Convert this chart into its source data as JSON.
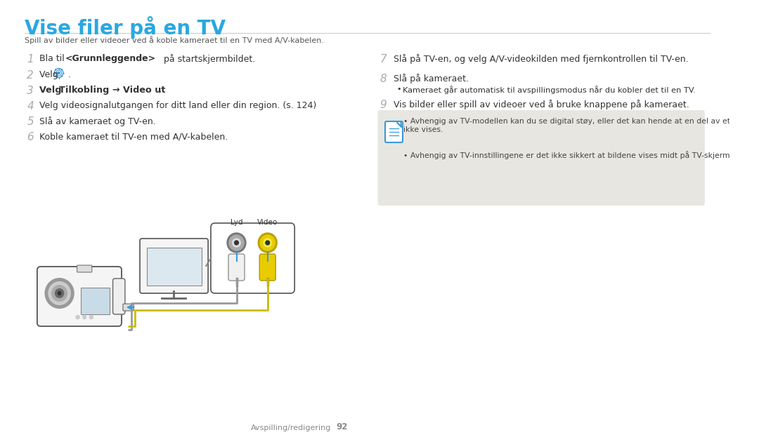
{
  "title": "Vise filer på en TV",
  "title_color": "#29a8e0",
  "subtitle": "Spill av bilder eller videoer ved å koble kameraet til en TV med A/V-kabelen.",
  "subtitle_color": "#555555",
  "bg_color": "#ffffff",
  "num_color": "#aaaaaa",
  "step_color": "#333333",
  "divider_color": "#cccccc",
  "footer_text": "Avspilling/redigering",
  "footer_page": "92",
  "footer_color": "#888888",
  "note_bg": "#e8e6e0",
  "note_icon_color": "#3a9ad9",
  "note_text1": "Avhengig av TV-modellen kan du se digital støy, eller det kan hende at en del av et bilde ikke vises.",
  "note_text2": "Avhengig av TV-innstillingene er det ikke sikkert at bildene vises midt på TV-skjermen."
}
